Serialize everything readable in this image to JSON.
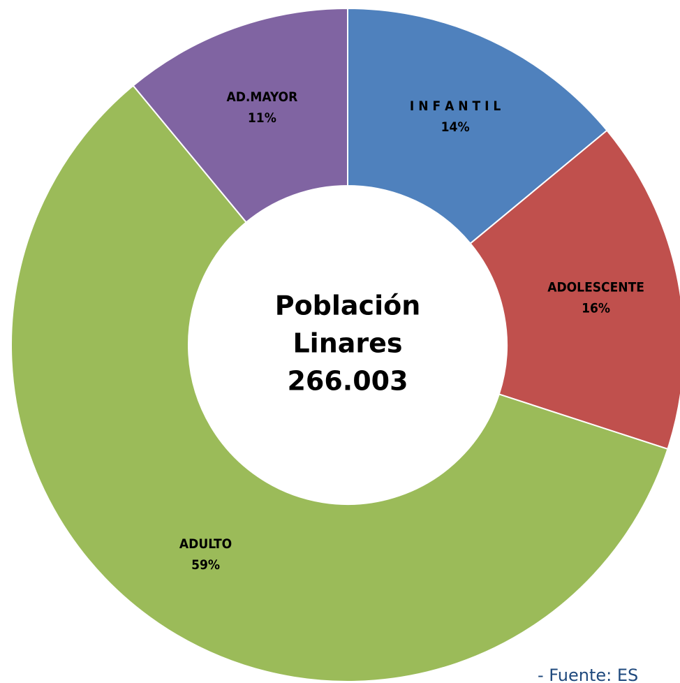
{
  "chart_data": {
    "type": "donut",
    "center_text": [
      "Población",
      "Linares",
      "266.003"
    ],
    "categories": [
      "I N F A N T I L",
      "ADOLESCENTE",
      "ADULTO",
      "AD.MAYOR"
    ],
    "values": [
      14,
      16,
      59,
      11
    ],
    "value_labels": [
      "14%",
      "16%",
      "59%",
      "11%"
    ],
    "colors": [
      "#4f81bd",
      "#c0504d",
      "#9bbb59",
      "#8064a2"
    ],
    "source": "- Fuente: ES"
  }
}
